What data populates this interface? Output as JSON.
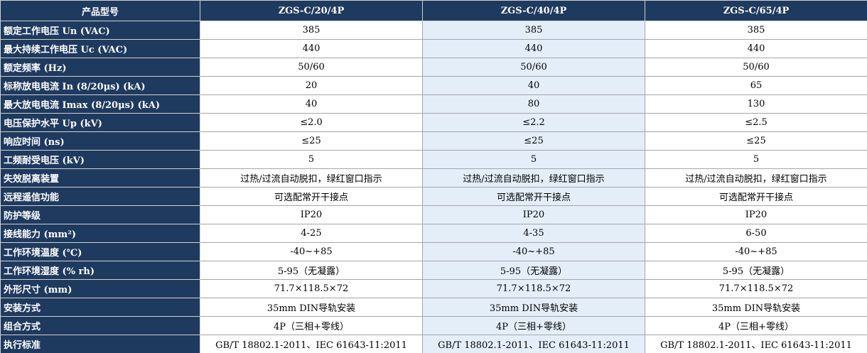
{
  "table": {
    "header": [
      "产品型号",
      "ZGS-C/20/4P",
      "ZGS-C/40/4P",
      "ZGS-C/65/4P"
    ],
    "rows": [
      [
        "额定工作电压 Un (VAC)",
        "385",
        "385",
        "385"
      ],
      [
        "最大持续工作电压 Uc (VAC)",
        "440",
        "440",
        "440"
      ],
      [
        "额定频率 (Hz)",
        "50/60",
        "50/60",
        "50/60"
      ],
      [
        "标称放电电流 In (8/20μs) (kA)",
        "20",
        "40",
        "65"
      ],
      [
        "最大放电电流 Imax (8/20μs) (kA)",
        "40",
        "80",
        "130"
      ],
      [
        "电压保护水平 Up (kV)",
        "≤2.0",
        "≤2.2",
        "≤2.5"
      ],
      [
        "响应时间 (ns)",
        "≤25",
        "≤25",
        "≤25"
      ],
      [
        "工频耐受电压 (kV)",
        "5",
        "5",
        "5"
      ],
      [
        "失效脱离装置",
        "过热/过流自动脱扣，绿红窗口指示",
        "过热/过流自动脱扣，绿红窗口指示",
        "过热/过流自动脱扣，绿红窗口指示"
      ],
      [
        "远程遥信功能",
        "可选配常开干接点",
        "可选配常开干接点",
        "可选配常开干接点"
      ],
      [
        "防护等级",
        "IP20",
        "IP20",
        "IP20"
      ],
      [
        "接线能力 (mm²)",
        "4-25",
        "4-35",
        "6-50"
      ],
      [
        "工作环境温度 (℃)",
        "-40~+85",
        "-40~+85",
        "-40~+85"
      ],
      [
        "工作环境湿度 (% rh)",
        "5-95（无凝露）",
        "5-95（无凝露）",
        "5-95（无凝露）"
      ],
      [
        "外形尺寸 (mm)",
        "71.7×118.5×72",
        "71.7×118.5×72",
        "71.7×118.5×72"
      ],
      [
        "安装方式",
        "35mm DIN导轨安装",
        "35mm DIN导轨安装",
        "35mm DIN导轨安装"
      ],
      [
        "组合方式",
        "4P（三相+零线）",
        "4P（三相+零线）",
        "4P（三相+零线）"
      ],
      [
        "执行标准",
        "GB/T 18802.1-2011、IEC 61643-11:2011",
        "GB/T 18802.1-2011、IEC 61643-11:2011",
        "GB/T 18802.1-2011、IEC 61643-11:2011"
      ]
    ]
  }
}
